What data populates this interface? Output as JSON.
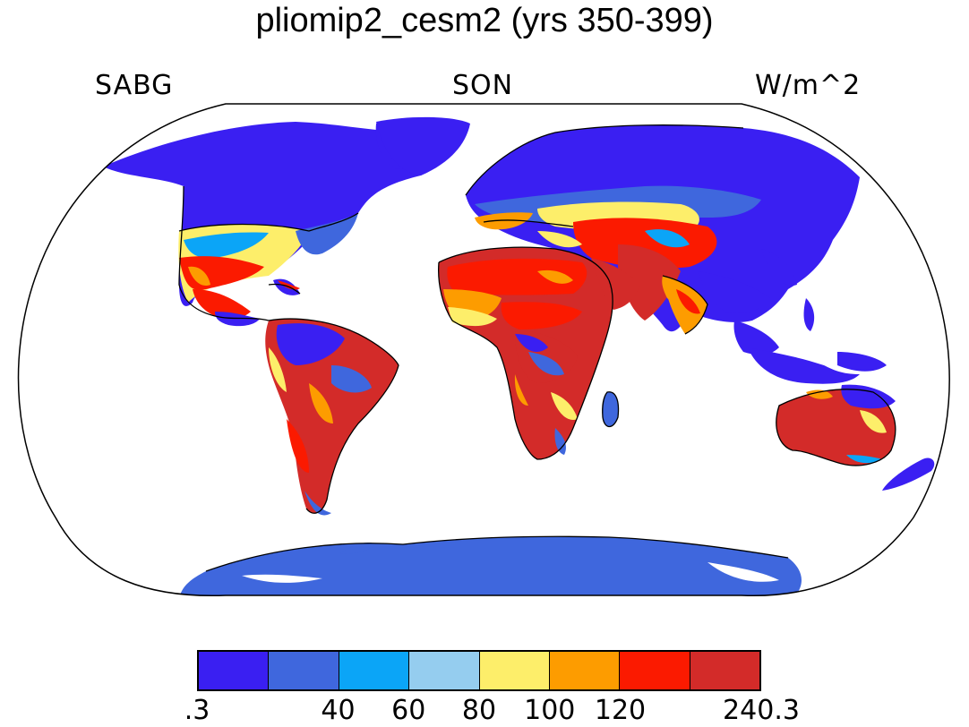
{
  "title": "pliomip2_cesm2 (yrs 350-399)",
  "variable": "SABG",
  "season": "SON",
  "units": "W/m^2",
  "colorbar": {
    "colors": [
      "#3a1ff2",
      "#3f67dd",
      "#0ba5f7",
      "#95cdef",
      "#fdee6a",
      "#fd9c00",
      "#fb1a00",
      "#d32b29"
    ],
    "labels": [
      ".3",
      "40",
      "60",
      "80",
      "100",
      "120",
      "240.3"
    ]
  },
  "map_colors": {
    "ocean": "#ffffff",
    "coast": "#000000"
  }
}
